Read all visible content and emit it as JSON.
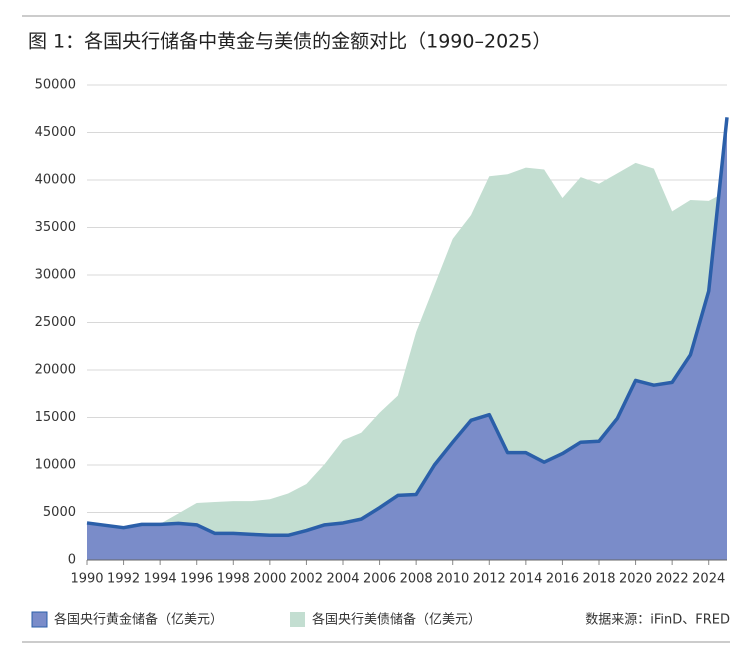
{
  "chart_data": {
    "type": "area",
    "title": "图 1：各国央行储备中黄金与美债的金额对比（1990–2025）",
    "source": "数据来源：iFinD、FRED",
    "x": [
      1990,
      1991,
      1992,
      1993,
      1994,
      1995,
      1996,
      1997,
      1998,
      1999,
      2000,
      2001,
      2002,
      2003,
      2004,
      2005,
      2006,
      2007,
      2008,
      2009,
      2010,
      2011,
      2012,
      2013,
      2014,
      2015,
      2016,
      2017,
      2018,
      2019,
      2020,
      2021,
      2022,
      2023,
      2024,
      2025
    ],
    "xlim": [
      1990,
      2025
    ],
    "xticks": [
      1990,
      1992,
      1994,
      1996,
      1998,
      2000,
      2002,
      2004,
      2006,
      2008,
      2010,
      2012,
      2014,
      2016,
      2018,
      2020,
      2022,
      2024
    ],
    "ylim": [
      0,
      50000
    ],
    "yticks": [
      0,
      5000,
      10000,
      15000,
      20000,
      25000,
      30000,
      35000,
      40000,
      45000,
      50000
    ],
    "grid": true,
    "series": [
      {
        "name": "各国央行黄金储备（亿美元）",
        "color": "#7a8cc9",
        "line_color": "#2b5fa9",
        "values": [
          3900,
          3650,
          3400,
          3750,
          3750,
          3850,
          3700,
          2800,
          2800,
          2700,
          2600,
          2600,
          3100,
          3700,
          3900,
          4300,
          5500,
          6800,
          6900,
          10000,
          12400,
          14700,
          15300,
          11300,
          11300,
          10300,
          11200,
          12400,
          12500,
          14900,
          18900,
          18400,
          18700,
          21600,
          28300,
          46600
        ]
      },
      {
        "name": "各国央行美债储备（亿美元）",
        "color": "#c3ded1",
        "values": [
          3000,
          3100,
          3300,
          3600,
          3800,
          4900,
          6000,
          6100,
          6200,
          6200,
          6400,
          7000,
          8000,
          10100,
          12600,
          13400,
          15500,
          17300,
          24000,
          28900,
          33800,
          36300,
          40400,
          40600,
          41300,
          41100,
          38100,
          40300,
          39600,
          40700,
          41800,
          41200,
          36700,
          37900,
          37800,
          38800
        ]
      }
    ]
  }
}
